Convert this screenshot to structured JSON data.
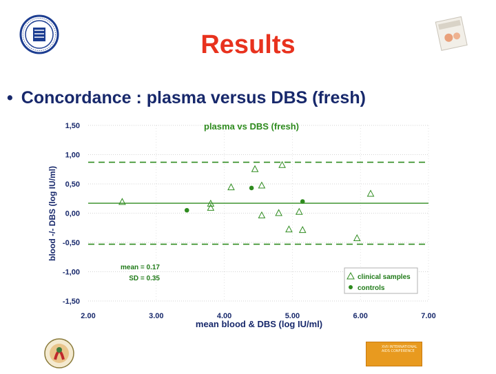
{
  "slide": {
    "title": "Results",
    "bullet_symbol": "•",
    "bullet_text": "Concordance : plasma versus DBS (fresh)"
  },
  "colors": {
    "title": "#e8321e",
    "bullet": "#17286b",
    "chart_green": "#2e8b1e",
    "legend_text": "#1f7a18"
  },
  "logos": {
    "top_left": "university-seal-logo",
    "top_right": "dried-blood-spot-card-image",
    "bottom_left": "ribbon-logo",
    "bottom_right": "aids-conference-logo",
    "bottom_right_text": "XVII INTERNATIONAL AIDS CONFERENCE"
  },
  "chart_data": {
    "type": "scatter",
    "title": "plasma vs DBS (fresh)",
    "xlabel": "mean blood & DBS (log IU/ml)",
    "ylabel": "blood -/- DBS (log IU/ml)",
    "xlim": [
      2.0,
      7.0
    ],
    "ylim": [
      -1.5,
      1.5
    ],
    "x_ticks": [
      2.0,
      3.0,
      4.0,
      5.0,
      6.0,
      7.0
    ],
    "x_tick_labels": [
      "2.00",
      "3.00",
      "4.00",
      "5.00",
      "6.00",
      "7.00"
    ],
    "y_ticks": [
      1.5,
      1.0,
      0.5,
      0.0,
      -0.5,
      -1.0,
      -1.5
    ],
    "y_tick_labels": [
      "1,50",
      "1,00",
      "0,50",
      "0,00",
      "-0,50",
      "-1,00",
      "-1,50"
    ],
    "grid": true,
    "reference_lines": [
      {
        "kind": "mean",
        "y": 0.17,
        "style": "solid"
      },
      {
        "kind": "upper-limit",
        "y": 0.87,
        "style": "dashed"
      },
      {
        "kind": "lower-limit",
        "y": -0.53,
        "style": "dashed"
      }
    ],
    "annotations": [
      "mean = 0.17",
      "SD = 0.35"
    ],
    "legend_position": "bottom-right",
    "series": [
      {
        "name": "clinical samples",
        "marker": "triangle",
        "points": [
          {
            "x": 2.5,
            "y": 0.19
          },
          {
            "x": 3.8,
            "y": 0.09
          },
          {
            "x": 3.8,
            "y": 0.16
          },
          {
            "x": 4.1,
            "y": 0.44
          },
          {
            "x": 4.45,
            "y": 0.75
          },
          {
            "x": 4.55,
            "y": 0.47
          },
          {
            "x": 4.55,
            "y": -0.04
          },
          {
            "x": 4.8,
            "y": 0.0
          },
          {
            "x": 4.85,
            "y": 0.82
          },
          {
            "x": 4.95,
            "y": -0.28
          },
          {
            "x": 5.1,
            "y": 0.02
          },
          {
            "x": 5.15,
            "y": -0.29
          },
          {
            "x": 5.95,
            "y": -0.43
          },
          {
            "x": 6.15,
            "y": 0.33
          }
        ]
      },
      {
        "name": "controls",
        "marker": "circle",
        "points": [
          {
            "x": 3.45,
            "y": 0.05
          },
          {
            "x": 4.4,
            "y": 0.43
          },
          {
            "x": 5.15,
            "y": 0.2
          }
        ]
      }
    ]
  }
}
